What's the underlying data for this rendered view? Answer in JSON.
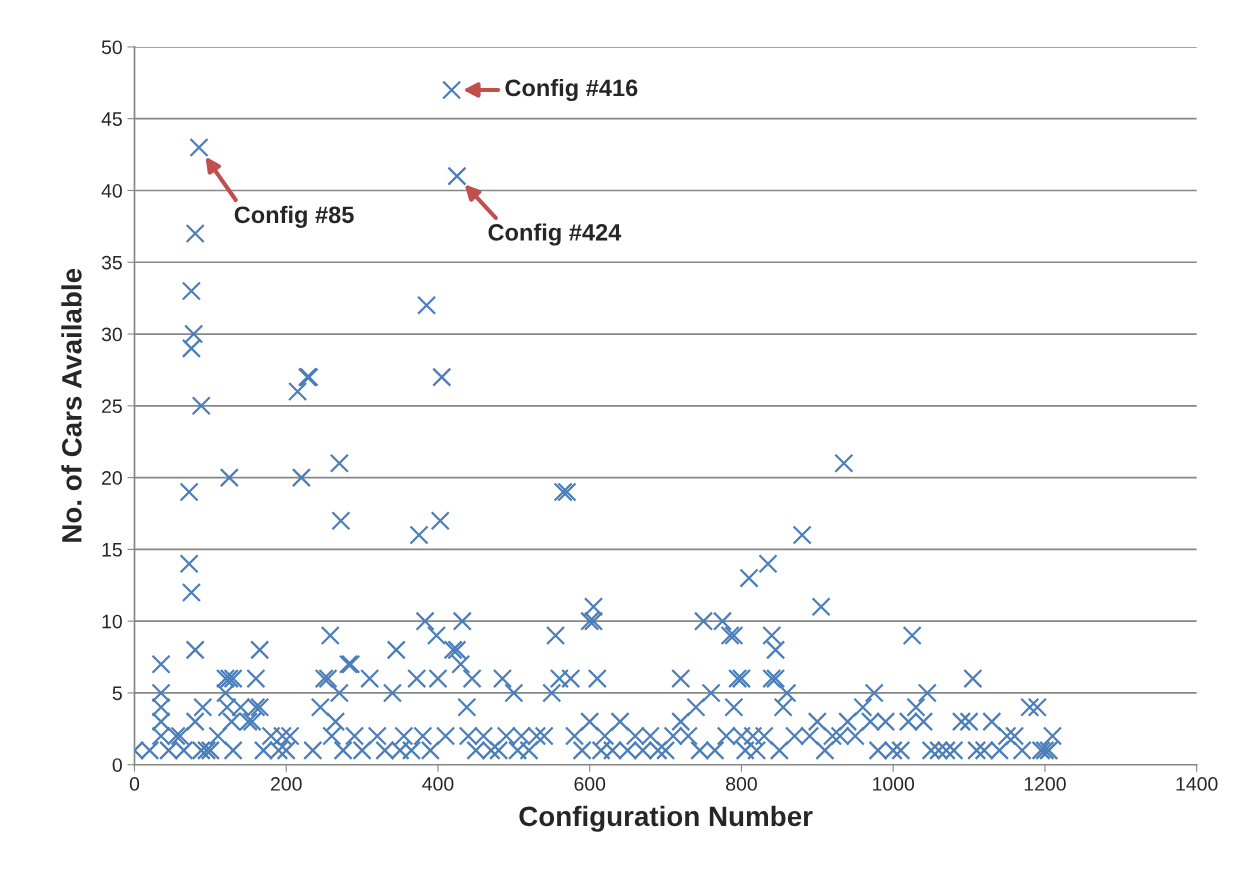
{
  "chart_data": {
    "type": "scatter",
    "xlabel": "Configuration Number",
    "ylabel": "No. of Cars Available",
    "series": [
      {
        "color": "#4a7ebb",
        "x": [
          0,
          20,
          35,
          35,
          35,
          35,
          35,
          45,
          55,
          60,
          65,
          72,
          72,
          75,
          75,
          75,
          78,
          80,
          80,
          80,
          85,
          88,
          88,
          90,
          95,
          100,
          110,
          120,
          120,
          122,
          125,
          125,
          128,
          130,
          130,
          140,
          150,
          155,
          160,
          160,
          165,
          165,
          170,
          180,
          190,
          195,
          200,
          205,
          215,
          220,
          228,
          230,
          235,
          245,
          250,
          255,
          258,
          260,
          265,
          270,
          270,
          272,
          275,
          282,
          285,
          290,
          300,
          310,
          320,
          330,
          340,
          345,
          350,
          355,
          365,
          372,
          375,
          380,
          383,
          385,
          390,
          398,
          400,
          403,
          405,
          410,
          418,
          420,
          425,
          425,
          430,
          432,
          438,
          440,
          445,
          450,
          460,
          470,
          480,
          485,
          490,
          500,
          505,
          510,
          520,
          530,
          540,
          550,
          555,
          560,
          565,
          570,
          575,
          580,
          590,
          600,
          600,
          605,
          605,
          610,
          615,
          620,
          630,
          640,
          650,
          660,
          670,
          680,
          690,
          700,
          710,
          720,
          720,
          730,
          740,
          745,
          750,
          760,
          765,
          775,
          780,
          785,
          790,
          790,
          795,
          800,
          800,
          805,
          810,
          815,
          820,
          830,
          835,
          840,
          840,
          845,
          845,
          850,
          855,
          860,
          870,
          880,
          890,
          900,
          905,
          910,
          920,
          930,
          935,
          940,
          950,
          960,
          970,
          975,
          980,
          990,
          1000,
          1010,
          1020,
          1025,
          1030,
          1040,
          1045,
          1050,
          1060,
          1070,
          1080,
          1090,
          1100,
          1105,
          1110,
          1120,
          1130,
          1140,
          1150,
          1160,
          1170,
          1180,
          1190,
          1195,
          1200,
          1205,
          1210
        ],
        "values": [
          1,
          1,
          7,
          5,
          4,
          3,
          2,
          1,
          2,
          2,
          1,
          19,
          14,
          12,
          33,
          29,
          30,
          37,
          8,
          3,
          43,
          25,
          1,
          4,
          1,
          1,
          2,
          6,
          5,
          4,
          20,
          6,
          3,
          6,
          1,
          4,
          3,
          3,
          6,
          4,
          4,
          8,
          1,
          2,
          1,
          2,
          1,
          2,
          26,
          20,
          27,
          27,
          1,
          4,
          6,
          6,
          9,
          2,
          3,
          21,
          5,
          17,
          1,
          7,
          7,
          2,
          1,
          6,
          2,
          1,
          5,
          8,
          1,
          2,
          1,
          6,
          16,
          2,
          10,
          32,
          1,
          9,
          6,
          17,
          27,
          2,
          47,
          8,
          41,
          8,
          7,
          10,
          4,
          2,
          6,
          1,
          2,
          1,
          1,
          6,
          2,
          5,
          1,
          2,
          1,
          2,
          2,
          5,
          9,
          6,
          19,
          19,
          6,
          2,
          1,
          10,
          3,
          11,
          10,
          6,
          1,
          2,
          1,
          3,
          1,
          2,
          1,
          2,
          1,
          1,
          2,
          6,
          3,
          2,
          4,
          1,
          10,
          5,
          1,
          10,
          2,
          9,
          9,
          4,
          6,
          6,
          2,
          1,
          13,
          2,
          1,
          2,
          14,
          9,
          6,
          8,
          6,
          1,
          4,
          5,
          2,
          16,
          2,
          3,
          11,
          1,
          2,
          2,
          21,
          3,
          2,
          4,
          3,
          5,
          1,
          3,
          1,
          1,
          3,
          9,
          4,
          3,
          5,
          1,
          1,
          1,
          1,
          3,
          3,
          6,
          1,
          1,
          3,
          1,
          2,
          2,
          1,
          4,
          4,
          1,
          1,
          1,
          2
        ]
      }
    ],
    "xlim": [
      0,
      1400
    ],
    "xticks": [
      0,
      200,
      400,
      600,
      800,
      1000,
      1200,
      1400
    ],
    "ylim": [
      0,
      50
    ],
    "yticks": [
      0,
      5,
      10,
      15,
      20,
      25,
      30,
      35,
      40,
      45,
      50
    ],
    "grid": "y",
    "marker": "cross",
    "annotations": [
      {
        "text": "Config #85",
        "x": 85,
        "y": 43
      },
      {
        "text": "Config #416",
        "x": 418,
        "y": 47
      },
      {
        "text": "Config #424",
        "x": 425,
        "y": 41
      }
    ]
  }
}
